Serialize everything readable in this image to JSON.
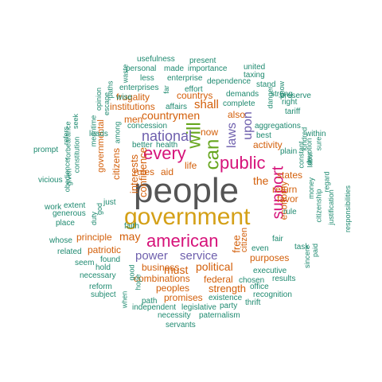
{
  "colors": {
    "darkgray": "#555555",
    "gold": "#d4a017",
    "magenta": "#d6137a",
    "green": "#66a61e",
    "purple": "#6e5fad",
    "orange": "#d35f0a",
    "teal": "#1f8a70"
  },
  "words": [
    {
      "text": "people",
      "color": "darkgray"
    },
    {
      "text": "government",
      "color": "gold"
    },
    {
      "text": "american",
      "color": "magenta"
    },
    {
      "text": "can",
      "color": "green"
    },
    {
      "text": "public",
      "color": "magenta"
    },
    {
      "text": "every",
      "color": "magenta"
    },
    {
      "text": "will",
      "color": "green"
    },
    {
      "text": "support",
      "color": "magenta"
    },
    {
      "text": "national",
      "color": "purple"
    },
    {
      "text": "power",
      "color": "purple"
    },
    {
      "text": "service",
      "color": "purple"
    },
    {
      "text": "laws",
      "color": "purple"
    },
    {
      "text": "upon",
      "color": "purple"
    },
    {
      "text": "political",
      "color": "orange"
    },
    {
      "text": "must",
      "color": "orange"
    },
    {
      "text": "may",
      "color": "orange"
    },
    {
      "text": "countrymen",
      "color": "orange"
    },
    {
      "text": "free",
      "color": "orange"
    },
    {
      "text": "shall",
      "color": "orange"
    },
    {
      "text": "confidence",
      "color": "orange"
    },
    {
      "text": "interests",
      "color": "orange"
    },
    {
      "text": "the",
      "color": "orange"
    },
    {
      "text": "strength",
      "color": "orange"
    },
    {
      "text": "federal",
      "color": "orange"
    },
    {
      "text": "business",
      "color": "orange"
    },
    {
      "text": "combinations",
      "color": "orange"
    },
    {
      "text": "peoples",
      "color": "orange"
    },
    {
      "text": "promises",
      "color": "orange"
    },
    {
      "text": "purposes",
      "color": "orange"
    },
    {
      "text": "institutions",
      "color": "orange"
    },
    {
      "text": "frugality",
      "color": "orange"
    },
    {
      "text": "men",
      "color": "orange"
    },
    {
      "text": "life",
      "color": "orange"
    },
    {
      "text": "aid",
      "color": "orange"
    },
    {
      "text": "rules",
      "color": "orange"
    },
    {
      "text": "countrys",
      "color": "orange"
    },
    {
      "text": "return",
      "color": "orange"
    },
    {
      "text": "principle",
      "color": "orange"
    },
    {
      "text": "patriotic",
      "color": "orange"
    },
    {
      "text": "economy",
      "color": "orange"
    },
    {
      "text": "favor",
      "color": "orange"
    },
    {
      "text": "citizens",
      "color": "orange"
    },
    {
      "text": "activity",
      "color": "orange"
    },
    {
      "text": "states",
      "color": "orange"
    },
    {
      "text": "also",
      "color": "orange"
    },
    {
      "text": "now",
      "color": "orange"
    },
    {
      "text": "citizen",
      "color": "orange"
    },
    {
      "text": "governmental",
      "color": "orange"
    },
    {
      "text": "usefulness",
      "color": "teal"
    },
    {
      "text": "present",
      "color": "teal"
    },
    {
      "text": "personal",
      "color": "teal"
    },
    {
      "text": "made",
      "color": "teal"
    },
    {
      "text": "importance",
      "color": "teal"
    },
    {
      "text": "united",
      "color": "teal"
    },
    {
      "text": "taxing",
      "color": "teal"
    },
    {
      "text": "waste",
      "color": "teal"
    },
    {
      "text": "less",
      "color": "teal"
    },
    {
      "text": "enterprise",
      "color": "teal"
    },
    {
      "text": "dependence",
      "color": "teal"
    },
    {
      "text": "stand",
      "color": "teal"
    },
    {
      "text": "enterprises",
      "color": "teal"
    },
    {
      "text": "far",
      "color": "teal"
    },
    {
      "text": "effort",
      "color": "teal"
    },
    {
      "text": "wise",
      "color": "teal"
    },
    {
      "text": "demands",
      "color": "teal"
    },
    {
      "text": "strong",
      "color": "teal"
    },
    {
      "text": "paths",
      "color": "teal"
    },
    {
      "text": "affairs",
      "color": "teal"
    },
    {
      "text": "complete",
      "color": "teal"
    },
    {
      "text": "right",
      "color": "teal"
    },
    {
      "text": "opinion",
      "color": "teal"
    },
    {
      "text": "escape",
      "color": "teal"
    },
    {
      "text": "danger",
      "color": "teal"
    },
    {
      "text": "know",
      "color": "teal"
    },
    {
      "text": "preserve",
      "color": "teal"
    },
    {
      "text": "seek",
      "color": "teal"
    },
    {
      "text": "concession",
      "color": "teal"
    },
    {
      "text": "aggregations",
      "color": "teal"
    },
    {
      "text": "tariff",
      "color": "teal"
    },
    {
      "text": "meantime",
      "color": "teal"
    },
    {
      "text": "leads",
      "color": "teal"
    },
    {
      "text": "among",
      "color": "teal"
    },
    {
      "text": "best",
      "color": "teal"
    },
    {
      "text": "within",
      "color": "teal"
    },
    {
      "text": "refers",
      "color": "teal"
    },
    {
      "text": "better",
      "color": "teal"
    },
    {
      "text": "health",
      "color": "teal"
    },
    {
      "text": "kindred",
      "color": "teal"
    },
    {
      "text": "prompt",
      "color": "teal"
    },
    {
      "text": "forbearance",
      "color": "teal"
    },
    {
      "text": "constitution",
      "color": "teal"
    },
    {
      "text": "plain",
      "color": "teal"
    },
    {
      "text": "constant",
      "color": "teal"
    },
    {
      "text": "devotion",
      "color": "teal"
    },
    {
      "text": "labor",
      "color": "teal"
    },
    {
      "text": "sure",
      "color": "teal"
    },
    {
      "text": "vicious",
      "color": "teal"
    },
    {
      "text": "obedience",
      "color": "teal"
    },
    {
      "text": "given",
      "color": "teal"
    },
    {
      "text": "regard",
      "color": "teal"
    },
    {
      "text": "money",
      "color": "teal"
    },
    {
      "text": "work",
      "color": "teal"
    },
    {
      "text": "extent",
      "color": "teal"
    },
    {
      "text": "just",
      "color": "teal"
    },
    {
      "text": "rule",
      "color": "teal"
    },
    {
      "text": "generous",
      "color": "teal"
    },
    {
      "text": "god",
      "color": "teal"
    },
    {
      "text": "citizenship",
      "color": "teal"
    },
    {
      "text": "justification",
      "color": "teal"
    },
    {
      "text": "place",
      "color": "teal"
    },
    {
      "text": "duty",
      "color": "teal"
    },
    {
      "text": "whose",
      "color": "teal"
    },
    {
      "text": "faith",
      "color": "teal"
    },
    {
      "text": "fair",
      "color": "teal"
    },
    {
      "text": "task",
      "color": "teal"
    },
    {
      "text": "responsibilities",
      "color": "teal"
    },
    {
      "text": "related",
      "color": "teal"
    },
    {
      "text": "hold",
      "color": "teal"
    },
    {
      "text": "even",
      "color": "teal"
    },
    {
      "text": "paid",
      "color": "teal"
    },
    {
      "text": "seem",
      "color": "teal"
    },
    {
      "text": "found",
      "color": "teal"
    },
    {
      "text": "executive",
      "color": "teal"
    },
    {
      "text": "sincere",
      "color": "teal"
    },
    {
      "text": "necessary",
      "color": "teal"
    },
    {
      "text": "chosen",
      "color": "teal"
    },
    {
      "text": "results",
      "color": "teal"
    },
    {
      "text": "reform",
      "color": "teal"
    },
    {
      "text": "good",
      "color": "teal"
    },
    {
      "text": "office",
      "color": "teal"
    },
    {
      "text": "subject",
      "color": "teal"
    },
    {
      "text": "hope",
      "color": "teal"
    },
    {
      "text": "existence",
      "color": "teal"
    },
    {
      "text": "recognition",
      "color": "teal"
    },
    {
      "text": "path",
      "color": "teal"
    },
    {
      "text": "party",
      "color": "teal"
    },
    {
      "text": "when",
      "color": "teal"
    },
    {
      "text": "independent",
      "color": "teal"
    },
    {
      "text": "legislative",
      "color": "teal"
    },
    {
      "text": "thrift",
      "color": "teal"
    },
    {
      "text": "necessity",
      "color": "teal"
    },
    {
      "text": "paternalism",
      "color": "teal"
    },
    {
      "text": "servants",
      "color": "teal"
    }
  ]
}
